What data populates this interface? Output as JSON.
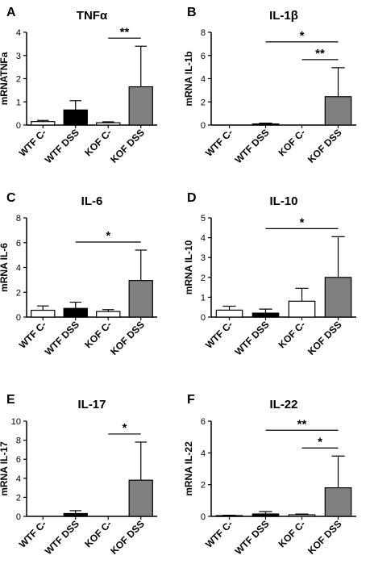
{
  "chart_data": [
    {
      "type": "bar",
      "panel": "A",
      "title": "TNFα",
      "ylabel": "mRNATNFa",
      "xlabel": "",
      "categories": [
        "WTF C-",
        "WTF DSS",
        "KOF C-",
        "KOF DSS"
      ],
      "values": [
        0.15,
        0.65,
        0.1,
        1.65
      ],
      "errors": [
        0.05,
        0.4,
        0.04,
        1.75
      ],
      "bar_colors": [
        "#ffffff",
        "#000000",
        "#ffffff",
        "#808080"
      ],
      "ylim": [
        0,
        4
      ],
      "yticks": [
        "0",
        "1",
        "2",
        "3",
        "4"
      ],
      "significance": [
        {
          "from": 2,
          "to": 3,
          "label": "**"
        }
      ]
    },
    {
      "type": "bar",
      "panel": "B",
      "title": "IL-1β",
      "ylabel": "mRNA IL-1b",
      "xlabel": "",
      "categories": [
        "WTF C-",
        "WTF DSS",
        "KOF C-",
        "KOF DSS"
      ],
      "values": [
        0.0,
        0.1,
        0.0,
        2.45
      ],
      "errors": [
        0.0,
        0.07,
        0.0,
        2.5
      ],
      "bar_colors": [
        "#ffffff",
        "#000000",
        "#ffffff",
        "#808080"
      ],
      "ylim": [
        0,
        8
      ],
      "yticks": [
        "0",
        "2",
        "4",
        "6",
        "8"
      ],
      "significance": [
        {
          "from": 1,
          "to": 3,
          "label": "*"
        },
        {
          "from": 2,
          "to": 3,
          "label": "**"
        }
      ]
    },
    {
      "type": "bar",
      "panel": "C",
      "title": "IL-6",
      "ylabel": "mRNA IL-6",
      "xlabel": "",
      "categories": [
        "WTF C-",
        "WTF DSS",
        "KOF C-",
        "KOF DSS"
      ],
      "values": [
        0.55,
        0.7,
        0.45,
        2.95
      ],
      "errors": [
        0.35,
        0.5,
        0.15,
        2.45
      ],
      "bar_colors": [
        "#ffffff",
        "#000000",
        "#ffffff",
        "#808080"
      ],
      "ylim": [
        0,
        8
      ],
      "yticks": [
        "0",
        "2",
        "4",
        "6",
        "8"
      ],
      "significance": [
        {
          "from": 1,
          "to": 3,
          "label": "*"
        }
      ]
    },
    {
      "type": "bar",
      "panel": "D",
      "title": "IL-10",
      "ylabel": "mRNA IL-10",
      "xlabel": "",
      "categories": [
        "WTF C-",
        "WTF DSS",
        "KOF C-",
        "KOF DSS"
      ],
      "values": [
        0.35,
        0.2,
        0.8,
        2.0
      ],
      "errors": [
        0.2,
        0.2,
        0.65,
        2.05
      ],
      "bar_colors": [
        "#ffffff",
        "#000000",
        "#ffffff",
        "#808080"
      ],
      "ylim": [
        0,
        5
      ],
      "yticks": [
        "0",
        "1",
        "2",
        "3",
        "4",
        "5"
      ],
      "significance": [
        {
          "from": 1,
          "to": 3,
          "label": "*"
        }
      ]
    },
    {
      "type": "bar",
      "panel": "E",
      "title": "IL-17",
      "ylabel": "mRNA IL-17",
      "xlabel": "",
      "categories": [
        "WTF C-",
        "WTF DSS",
        "KOF C-",
        "KOF DSS"
      ],
      "values": [
        0.0,
        0.3,
        0.0,
        3.8
      ],
      "errors": [
        0.0,
        0.3,
        0.0,
        4.0
      ],
      "bar_colors": [
        "#ffffff",
        "#000000",
        "#ffffff",
        "#808080"
      ],
      "ylim": [
        0,
        10
      ],
      "yticks": [
        "0",
        "2",
        "4",
        "6",
        "8",
        "10"
      ],
      "significance": [
        {
          "from": 2,
          "to": 3,
          "label": "*"
        }
      ]
    },
    {
      "type": "bar",
      "panel": "F",
      "title": "IL-22",
      "ylabel": "mRNA IL-22",
      "xlabel": "",
      "categories": [
        "WTF C-",
        "WTF DSS",
        "KOF C-",
        "KOF DSS"
      ],
      "values": [
        0.05,
        0.15,
        0.1,
        1.8
      ],
      "errors": [
        0.02,
        0.15,
        0.05,
        2.0
      ],
      "bar_colors": [
        "#ffffff",
        "#000000",
        "#ffffff",
        "#808080"
      ],
      "ylim": [
        0,
        6
      ],
      "yticks": [
        "0",
        "2",
        "4",
        "6"
      ],
      "significance": [
        {
          "from": 1,
          "to": 3,
          "label": "**"
        },
        {
          "from": 2,
          "to": 3,
          "label": "*"
        }
      ]
    }
  ]
}
